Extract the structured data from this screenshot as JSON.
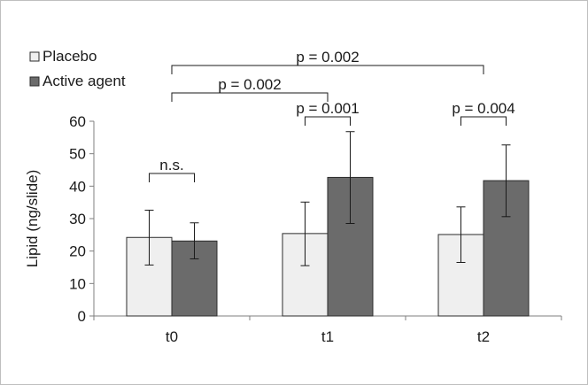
{
  "chart_data": {
    "type": "bar",
    "title": "",
    "xlabel": "",
    "ylabel": "Lipid (ng/slide)",
    "ylim": [
      0,
      60
    ],
    "yticks": [
      0,
      10,
      20,
      30,
      40,
      50,
      60
    ],
    "categories": [
      "t0",
      "t1",
      "t2"
    ],
    "grid": false,
    "legend_position": "top-left",
    "series": [
      {
        "name": "Placebo",
        "color": "#efefef",
        "values": [
          24.2,
          25.4,
          25.1
        ],
        "error_low": [
          15.7,
          15.5,
          16.5
        ],
        "error_high": [
          32.6,
          35.1,
          33.6
        ]
      },
      {
        "name": "Active agent",
        "color": "#6b6b6b",
        "values": [
          23.1,
          42.7,
          41.7
        ],
        "error_low": [
          17.6,
          28.5,
          30.6
        ],
        "error_high": [
          28.7,
          56.8,
          52.7
        ]
      }
    ],
    "annotations": [
      {
        "text": "n.s.",
        "category": 0,
        "type": "within"
      },
      {
        "text": "p = 0.001",
        "category": 1,
        "type": "within"
      },
      {
        "text": "p = 0.004",
        "category": 2,
        "type": "within"
      },
      {
        "text": "p = 0.002",
        "from": 0,
        "to": 1,
        "type": "between"
      },
      {
        "text": "p = 0.002",
        "from": 0,
        "to": 2,
        "type": "between"
      }
    ]
  }
}
